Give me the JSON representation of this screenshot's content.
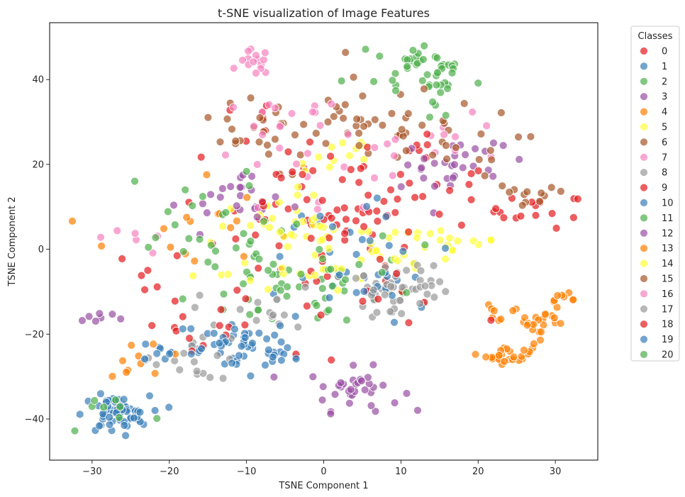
{
  "chart_data": {
    "type": "scatter",
    "title": "t-SNE visualization of Image Features",
    "xlabel": "TSNE Component 1",
    "ylabel": "TSNE Component 2",
    "xlim": [
      -35.5,
      35.5
    ],
    "ylim": [
      -49.7,
      53.4
    ],
    "xticks": [
      -30,
      -20,
      -10,
      0,
      10,
      20,
      30
    ],
    "yticks": [
      -40,
      -20,
      0,
      20,
      40
    ],
    "grid": false,
    "legend": {
      "title": "Classes",
      "placement": "outside-right"
    },
    "point_alpha": 0.7,
    "series": [
      {
        "name": "0",
        "color": "#e41a1c",
        "clusters": [
          {
            "cx": 0,
            "cy": 5,
            "sx": 7,
            "sy": 7,
            "n": 35
          },
          {
            "cx": 28,
            "cy": 9,
            "sx": 3,
            "sy": 2,
            "n": 15
          },
          {
            "cx": -22,
            "cy": -6,
            "sx": 2,
            "sy": 3,
            "n": 6
          },
          {
            "cx": -10,
            "cy": 30,
            "sx": 3,
            "sy": 3,
            "n": 6
          }
        ]
      },
      {
        "name": "1",
        "color": "#377eb8",
        "clusters": [
          {
            "cx": -10,
            "cy": -24,
            "sx": 3,
            "sy": 2.5,
            "n": 30
          },
          {
            "cx": 3,
            "cy": -3,
            "sx": 5,
            "sy": 5,
            "n": 15
          },
          {
            "cx": -20,
            "cy": -24,
            "sx": 2,
            "sy": 1.5,
            "n": 10
          }
        ]
      },
      {
        "name": "2",
        "color": "#4daf4a",
        "clusters": [
          {
            "cx": 10,
            "cy": 45,
            "sx": 2,
            "sy": 2,
            "n": 15
          },
          {
            "cx": 15,
            "cy": 42,
            "sx": 1.5,
            "sy": 3,
            "n": 20
          },
          {
            "cx": 0,
            "cy": -10,
            "sx": 6,
            "sy": 5,
            "n": 20
          }
        ]
      },
      {
        "name": "3",
        "color": "#984ea3",
        "clusters": [
          {
            "cx": 4,
            "cy": -33,
            "sx": 3,
            "sy": 2.5,
            "n": 35
          },
          {
            "cx": -29,
            "cy": -16,
            "sx": 1.5,
            "sy": 1,
            "n": 7
          },
          {
            "cx": 17,
            "cy": 22,
            "sx": 3,
            "sy": 3,
            "n": 12
          },
          {
            "cx": -10,
            "cy": 12,
            "sx": 4,
            "sy": 3,
            "n": 10
          }
        ]
      },
      {
        "name": "4",
        "color": "#ff7f00",
        "clusters": [
          {
            "cx": 24,
            "cy": -25,
            "sx": 1.5,
            "sy": 1,
            "n": 25
          },
          {
            "cx": 28,
            "cy": -17,
            "sx": 2,
            "sy": 2,
            "n": 25
          },
          {
            "cx": 31,
            "cy": -12,
            "sx": 0.8,
            "sy": 0.8,
            "n": 8
          },
          {
            "cx": 22,
            "cy": -15,
            "sx": 1,
            "sy": 1,
            "n": 6
          }
        ]
      },
      {
        "name": "5",
        "color": "#ffff33",
        "clusters": [
          {
            "cx": -5,
            "cy": 3,
            "sx": 6,
            "sy": 5,
            "n": 30
          },
          {
            "cx": 2,
            "cy": 22,
            "sx": 3,
            "sy": 3,
            "n": 12
          },
          {
            "cx": 18,
            "cy": 2,
            "sx": 3,
            "sy": 2,
            "n": 10
          }
        ]
      },
      {
        "name": "6",
        "color": "#a65628",
        "clusters": [
          {
            "cx": 5,
            "cy": 30,
            "sx": 5,
            "sy": 5,
            "n": 35
          },
          {
            "cx": 26,
            "cy": 12,
            "sx": 3,
            "sy": 2,
            "n": 12
          },
          {
            "cx": -8,
            "cy": 30,
            "sx": 3,
            "sy": 3,
            "n": 10
          }
        ]
      },
      {
        "name": "7",
        "color": "#f781bf",
        "clusters": [
          {
            "cx": -9,
            "cy": 44,
            "sx": 1,
            "sy": 1.5,
            "n": 15
          },
          {
            "cx": -5,
            "cy": 30,
            "sx": 4,
            "sy": 3,
            "n": 12
          },
          {
            "cx": 18,
            "cy": 25,
            "sx": 4,
            "sy": 3,
            "n": 10
          }
        ]
      },
      {
        "name": "8",
        "color": "#999999",
        "clusters": [
          {
            "cx": 9,
            "cy": -10,
            "sx": 2.5,
            "sy": 3.5,
            "n": 30
          },
          {
            "cx": -16,
            "cy": -25,
            "sx": 3,
            "sy": 3,
            "n": 20
          }
        ]
      },
      {
        "name": "9",
        "color": "#e41a1c",
        "clusters": [
          {
            "cx": 10,
            "cy": 15,
            "sx": 7,
            "sy": 6,
            "n": 25
          },
          {
            "cx": 5,
            "cy": -10,
            "sx": 7,
            "sy": 4,
            "n": 15
          }
        ]
      },
      {
        "name": "10",
        "color": "#377eb8",
        "clusters": [
          {
            "cx": -27,
            "cy": -39,
            "sx": 2.2,
            "sy": 2.2,
            "n": 60
          },
          {
            "cx": 7,
            "cy": -10,
            "sx": 3,
            "sy": 4,
            "n": 15
          }
        ]
      },
      {
        "name": "11",
        "color": "#4daf4a",
        "clusters": [
          {
            "cx": -8,
            "cy": -5,
            "sx": 6,
            "sy": 7,
            "n": 30
          },
          {
            "cx": -28,
            "cy": -38,
            "sx": 3,
            "sy": 3,
            "n": 8
          }
        ]
      },
      {
        "name": "12",
        "color": "#984ea3",
        "clusters": [
          {
            "cx": 15,
            "cy": 20,
            "sx": 4,
            "sy": 4,
            "n": 18
          },
          {
            "cx": -10,
            "cy": 10,
            "sx": 5,
            "sy": 4,
            "n": 15
          }
        ]
      },
      {
        "name": "13",
        "color": "#ff7f00",
        "clusters": [
          {
            "cx": -18,
            "cy": 5,
            "sx": 5,
            "sy": 7,
            "n": 15
          },
          {
            "cx": -24,
            "cy": -25,
            "sx": 2,
            "sy": 3,
            "n": 10
          }
        ]
      },
      {
        "name": "14",
        "color": "#ffff33",
        "clusters": [
          {
            "cx": 0,
            "cy": 0,
            "sx": 5,
            "sy": 5,
            "n": 30
          },
          {
            "cx": 10,
            "cy": 0,
            "sx": 5,
            "sy": 4,
            "n": 15
          }
        ]
      },
      {
        "name": "15",
        "color": "#a65628",
        "clusters": [
          {
            "cx": 15,
            "cy": 25,
            "sx": 5,
            "sy": 4,
            "n": 20
          },
          {
            "cx": -10,
            "cy": 25,
            "sx": 4,
            "sy": 4,
            "n": 15
          }
        ]
      },
      {
        "name": "16",
        "color": "#f781bf",
        "clusters": [
          {
            "cx": 0,
            "cy": 20,
            "sx": 7,
            "sy": 7,
            "n": 20
          },
          {
            "cx": -25,
            "cy": 3,
            "sx": 2,
            "sy": 3,
            "n": 6
          }
        ]
      },
      {
        "name": "17",
        "color": "#999999",
        "clusters": [
          {
            "cx": 10,
            "cy": -8,
            "sx": 3,
            "sy": 3,
            "n": 25
          },
          {
            "cx": -8,
            "cy": -15,
            "sx": 4,
            "sy": 3,
            "n": 15
          }
        ]
      },
      {
        "name": "18",
        "color": "#e41a1c",
        "clusters": [
          {
            "cx": 5,
            "cy": 10,
            "sx": 10,
            "sy": 8,
            "n": 30
          },
          {
            "cx": -15,
            "cy": -20,
            "sx": 5,
            "sy": 5,
            "n": 15
          }
        ]
      },
      {
        "name": "19",
        "color": "#377eb8",
        "clusters": [
          {
            "cx": -12,
            "cy": -22,
            "sx": 5,
            "sy": 3,
            "n": 30
          },
          {
            "cx": 5,
            "cy": 5,
            "sx": 5,
            "sy": 5,
            "n": 10
          }
        ]
      },
      {
        "name": "20",
        "color": "#4daf4a",
        "clusters": [
          {
            "cx": -15,
            "cy": 10,
            "sx": 5,
            "sy": 5,
            "n": 15
          },
          {
            "cx": 12,
            "cy": 38,
            "sx": 5,
            "sy": 4,
            "n": 15
          },
          {
            "cx": 0,
            "cy": -5,
            "sx": 5,
            "sy": 5,
            "n": 15
          }
        ]
      }
    ]
  }
}
